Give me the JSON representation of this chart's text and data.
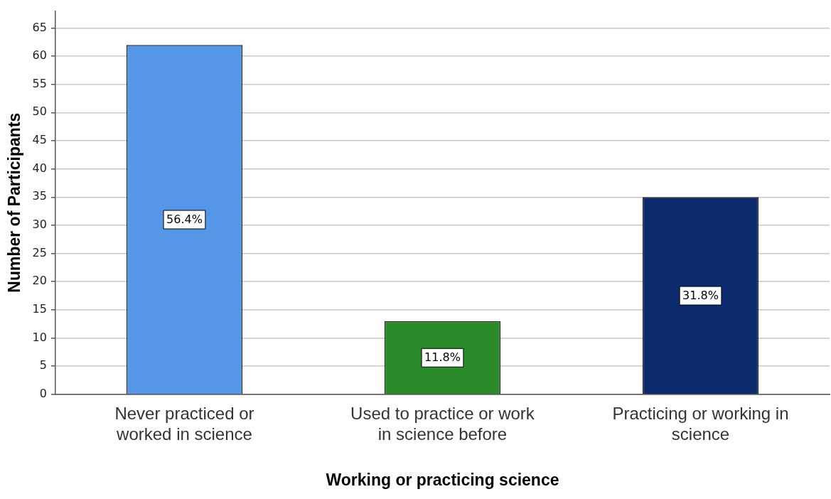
{
  "chart_data": {
    "type": "bar",
    "xlabel": "Working or practicing science",
    "ylabel": "Number of Participants",
    "categories": [
      "Never practiced or worked in science",
      "Used to practice or work in science before",
      "Practicing or working in science"
    ],
    "values": [
      62,
      13,
      35
    ],
    "colors": [
      "#5596e6",
      "#2a8a2a",
      "#0c2a6e"
    ],
    "annotations": [
      "56.4%",
      "11.8%",
      "31.8%"
    ],
    "ylim": [
      0,
      68
    ],
    "yticks": [
      0,
      5,
      10,
      15,
      20,
      25,
      30,
      35,
      40,
      45,
      50,
      55,
      60,
      65
    ],
    "grid": "y",
    "legend": false
  }
}
